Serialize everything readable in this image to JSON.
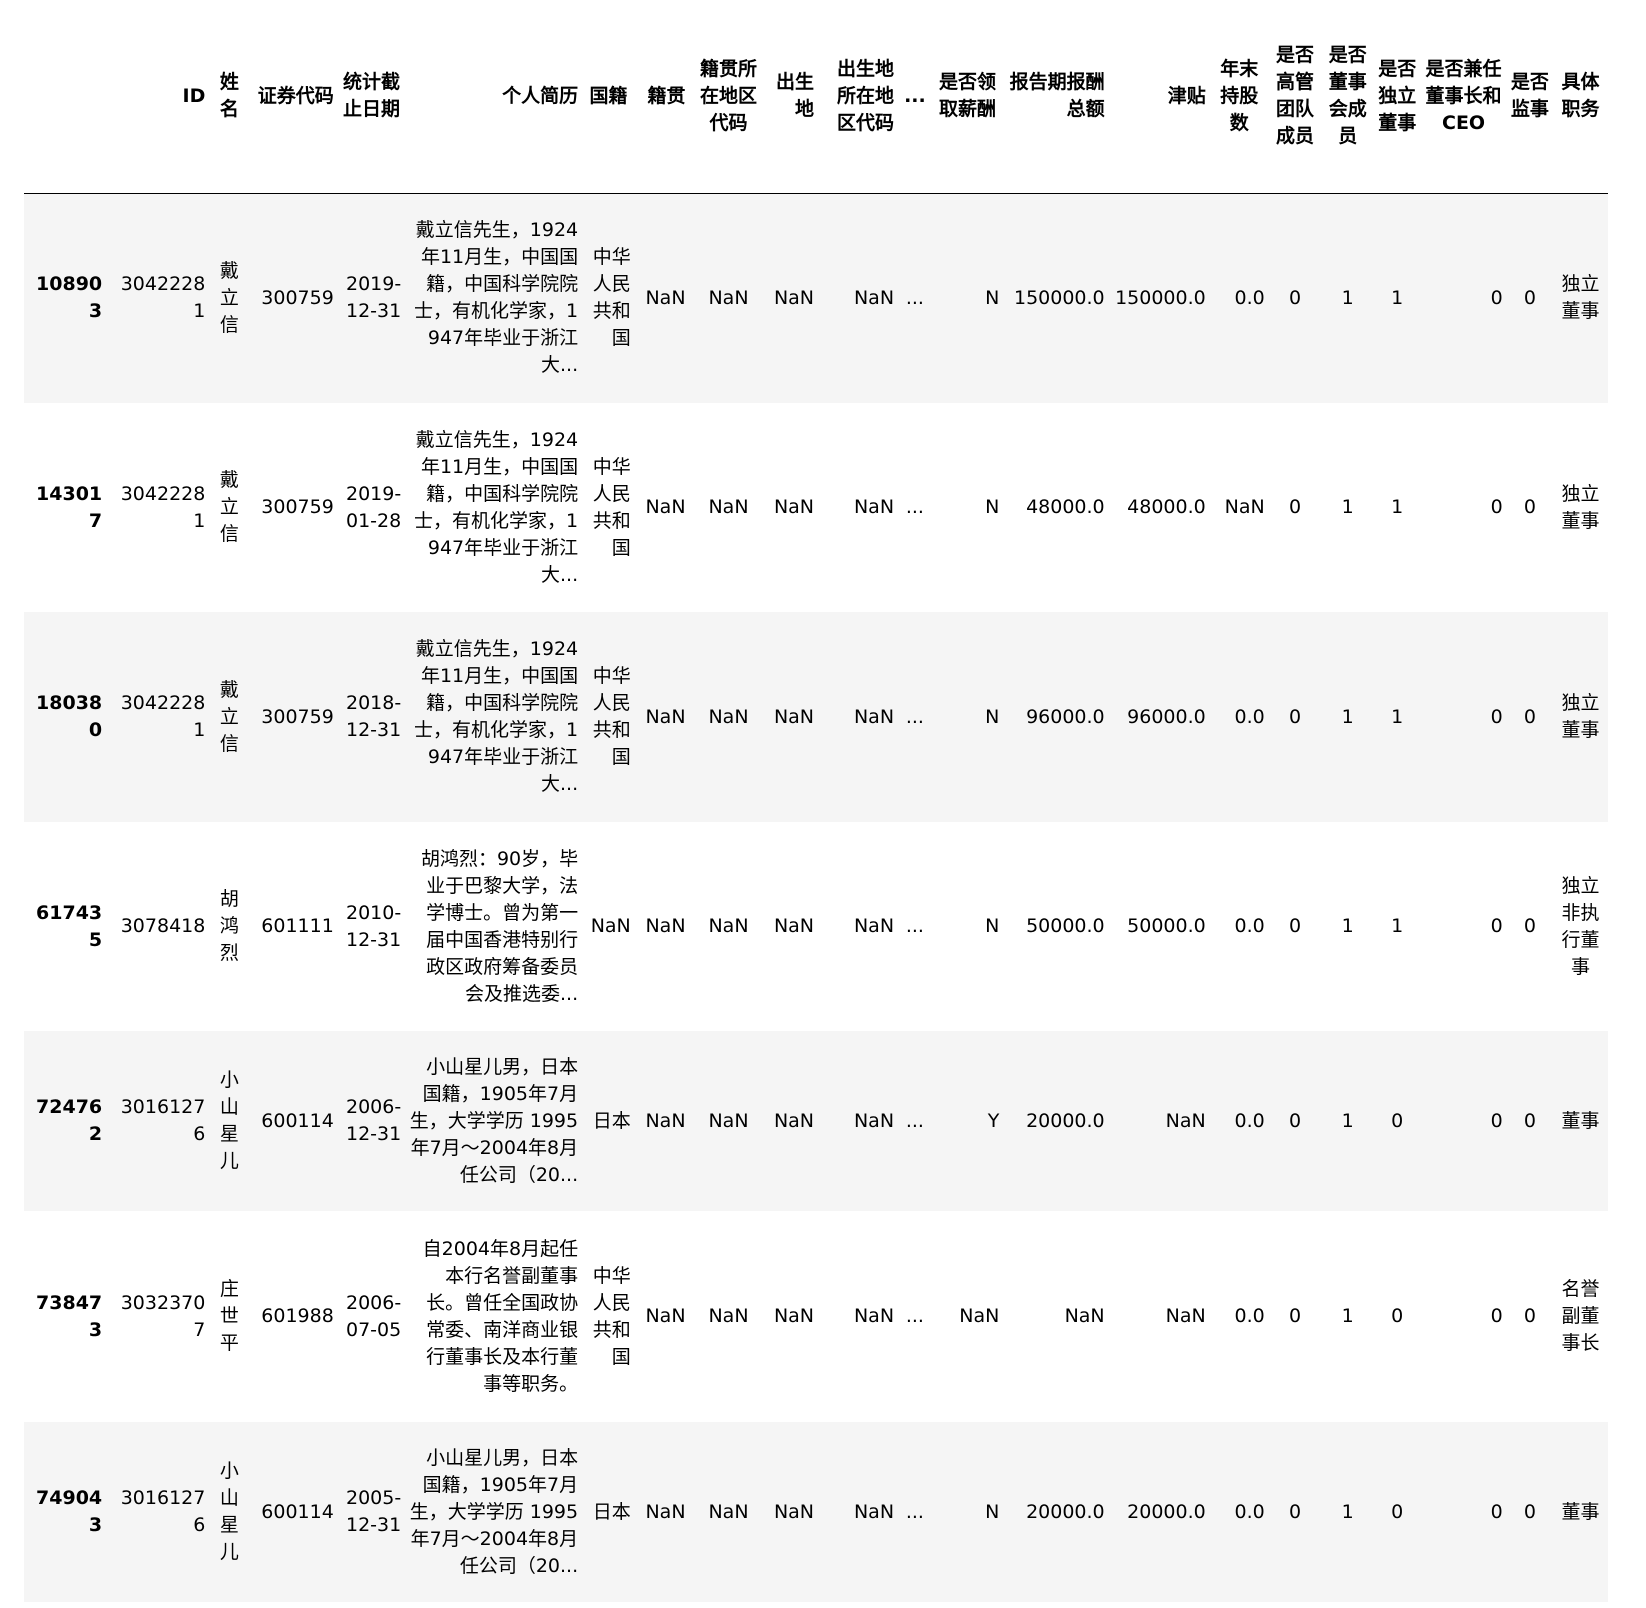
{
  "table": {
    "columns": [
      "ID",
      "姓名",
      "证券代码",
      "统计截止日期",
      "个人简历",
      "国籍",
      "籍贯",
      "籍贯所在地区代码",
      "出生地",
      "出生地所在地区代码",
      "...",
      "是否领取薪酬",
      "报告期报酬总额",
      "津贴",
      "年末持股数",
      "是否高管团队成员",
      "是否董事会成员",
      "是否独立董事",
      "是否兼任董事长和CEO",
      "是否监事",
      "具体职务"
    ],
    "rows": [
      {
        "index": "108903",
        "cells": [
          "30422281",
          "戴立信",
          "300759",
          "2019-12-31",
          "戴立信先生，1924年11月生，中国国籍，中国科学院院士，有机化学家，1947年毕业于浙江大...",
          "中华人民共和国",
          "NaN",
          "NaN",
          "NaN",
          "NaN",
          "...",
          "N",
          "150000.0",
          "150000.0",
          "0.0",
          "0",
          "1",
          "1",
          "0",
          "0",
          "独立董事"
        ]
      },
      {
        "index": "143017",
        "cells": [
          "30422281",
          "戴立信",
          "300759",
          "2019-01-28",
          "戴立信先生，1924年11月生，中国国籍，中国科学院院士，有机化学家，1947年毕业于浙江大...",
          "中华人民共和国",
          "NaN",
          "NaN",
          "NaN",
          "NaN",
          "...",
          "N",
          "48000.0",
          "48000.0",
          "NaN",
          "0",
          "1",
          "1",
          "0",
          "0",
          "独立董事"
        ]
      },
      {
        "index": "180380",
        "cells": [
          "30422281",
          "戴立信",
          "300759",
          "2018-12-31",
          "戴立信先生，1924年11月生，中国国籍，中国科学院院士，有机化学家，1947年毕业于浙江大...",
          "中华人民共和国",
          "NaN",
          "NaN",
          "NaN",
          "NaN",
          "...",
          "N",
          "96000.0",
          "96000.0",
          "0.0",
          "0",
          "1",
          "1",
          "0",
          "0",
          "独立董事"
        ]
      },
      {
        "index": "617435",
        "cells": [
          "3078418",
          "胡鸿烈",
          "601111",
          "2010-12-31",
          "胡鸿烈：90岁，毕业于巴黎大学，法学博士。曾为第一届中国香港特别行政区政府筹备委员会及推选委...",
          "NaN",
          "NaN",
          "NaN",
          "NaN",
          "NaN",
          "...",
          "N",
          "50000.0",
          "50000.0",
          "0.0",
          "0",
          "1",
          "1",
          "0",
          "0",
          "独立非执行董事"
        ]
      },
      {
        "index": "724762",
        "cells": [
          "30161276",
          "小山星儿",
          "600114",
          "2006-12-31",
          "小山星儿男，日本国籍，1905年7月生，大学学历 1995年7月～2004年8月任公司（20...",
          "日本",
          "NaN",
          "NaN",
          "NaN",
          "NaN",
          "...",
          "Y",
          "20000.0",
          "NaN",
          "0.0",
          "0",
          "1",
          "0",
          "0",
          "0",
          "董事"
        ]
      },
      {
        "index": "738473",
        "cells": [
          "30323707",
          "庄世平",
          "601988",
          "2006-07-05",
          "自2004年8月起任本行名誉副董事长。曾任全国政协常委、南洋商业银行董事长及本行董事等职务。",
          "中华人民共和国",
          "NaN",
          "NaN",
          "NaN",
          "NaN",
          "...",
          "NaN",
          "NaN",
          "NaN",
          "0.0",
          "0",
          "1",
          "0",
          "0",
          "0",
          "名誉副董事长"
        ]
      },
      {
        "index": "749043",
        "cells": [
          "30161276",
          "小山星儿",
          "600114",
          "2005-12-31",
          "小山星儿男，日本国籍，1905年7月生，大学学历 1995年7月～2004年8月任公司（20...",
          "日本",
          "NaN",
          "NaN",
          "NaN",
          "NaN",
          "...",
          "N",
          "20000.0",
          "20000.0",
          "0.0",
          "0",
          "1",
          "0",
          "0",
          "0",
          "董事"
        ]
      }
    ]
  }
}
